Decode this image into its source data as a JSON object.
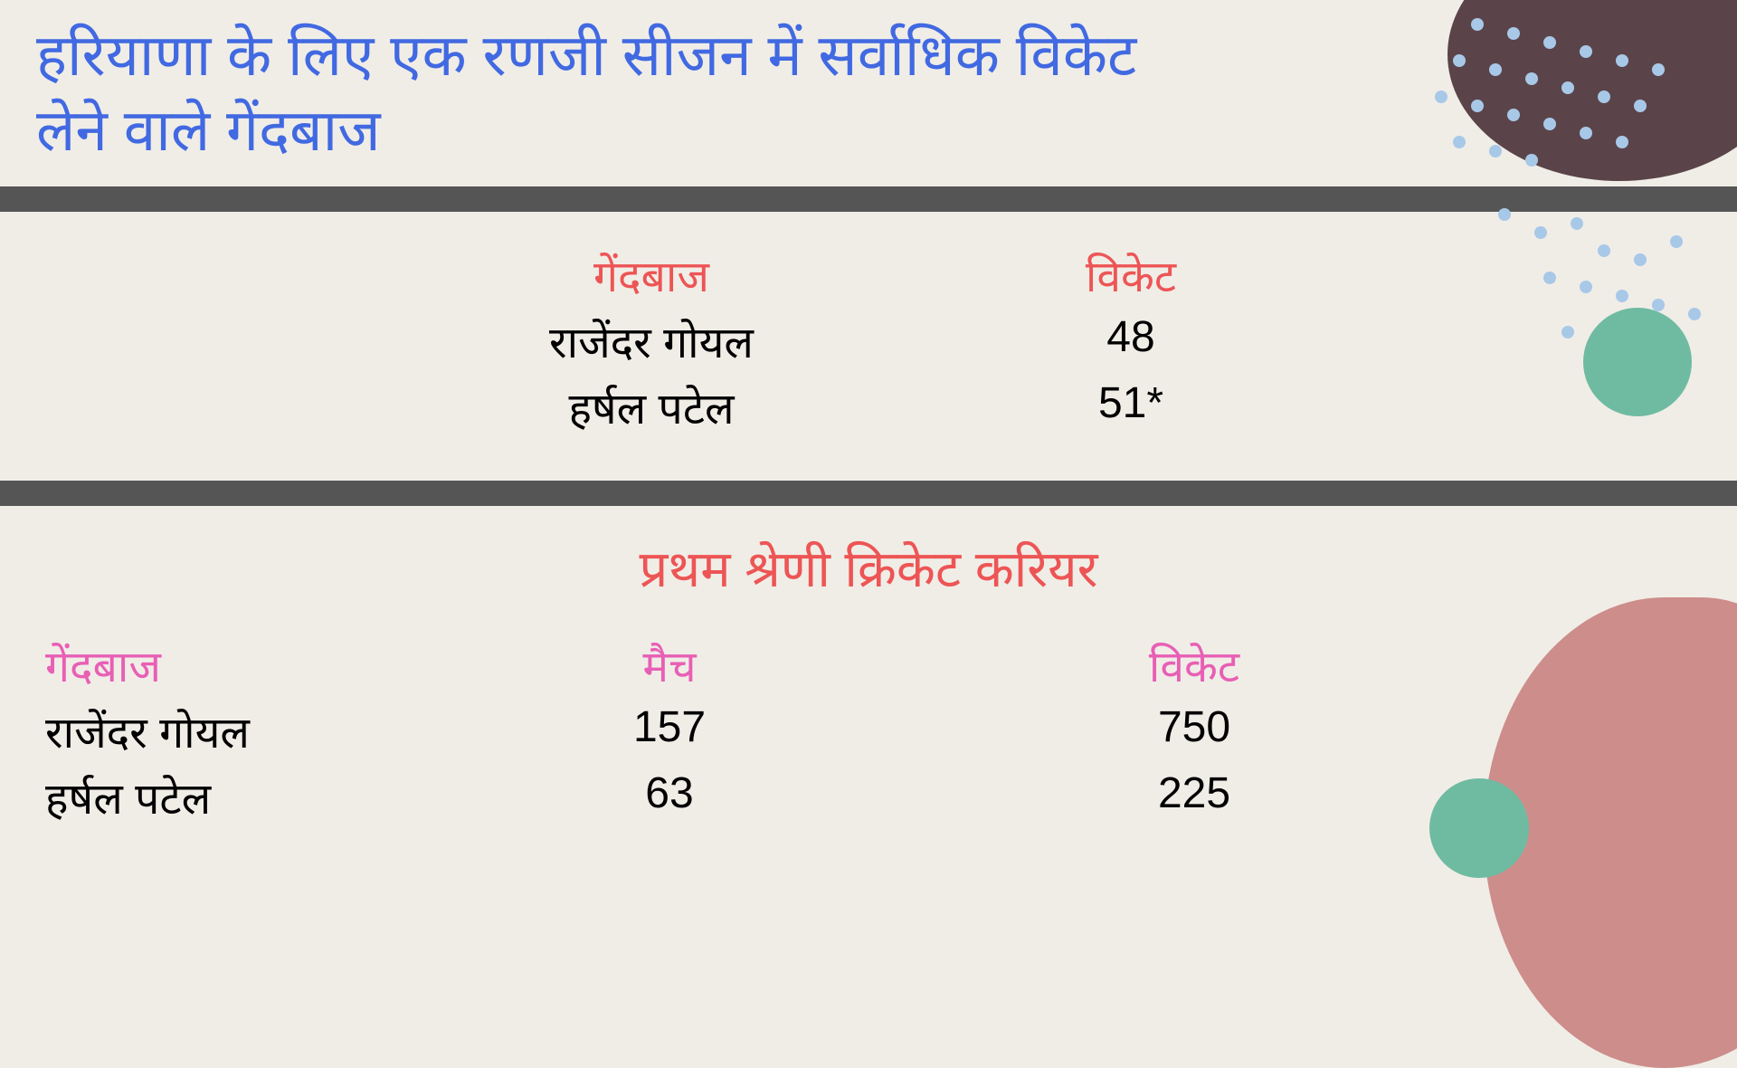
{
  "title": "हरियाणा के लिए एक रणजी सीजन में सर्वाधिक विकेट लेने वाले गेंदबाज",
  "table1": {
    "headers": {
      "bowler": "गेंदबाज",
      "wickets": "विकेट"
    },
    "rows": [
      {
        "bowler": "राजेंदर गोयल",
        "wickets": "48"
      },
      {
        "bowler": "हर्षल पटेल",
        "wickets": "51*"
      }
    ]
  },
  "section2_title": "प्रथम श्रेणी क्रिकेट  करियर",
  "table2": {
    "headers": {
      "bowler": "गेंदबाज",
      "matches": "मैच",
      "wickets": "विकेट"
    },
    "rows": [
      {
        "bowler": "राजेंदर गोयल",
        "matches": "157",
        "wickets": "750"
      },
      {
        "bowler": "हर्षल पटेल",
        "matches": "63",
        "wickets": "225"
      }
    ]
  },
  "colors": {
    "background": "#f0ede7",
    "title": "#4169e1",
    "divider": "#555555",
    "header_red": "#ed5555",
    "header_pink": "#e85fb5",
    "data": "#000000",
    "deco_dark": "#5a4449",
    "deco_dots": "#a8c8e8",
    "deco_green": "#6fbba2",
    "deco_pink": "#cd8d8a"
  }
}
